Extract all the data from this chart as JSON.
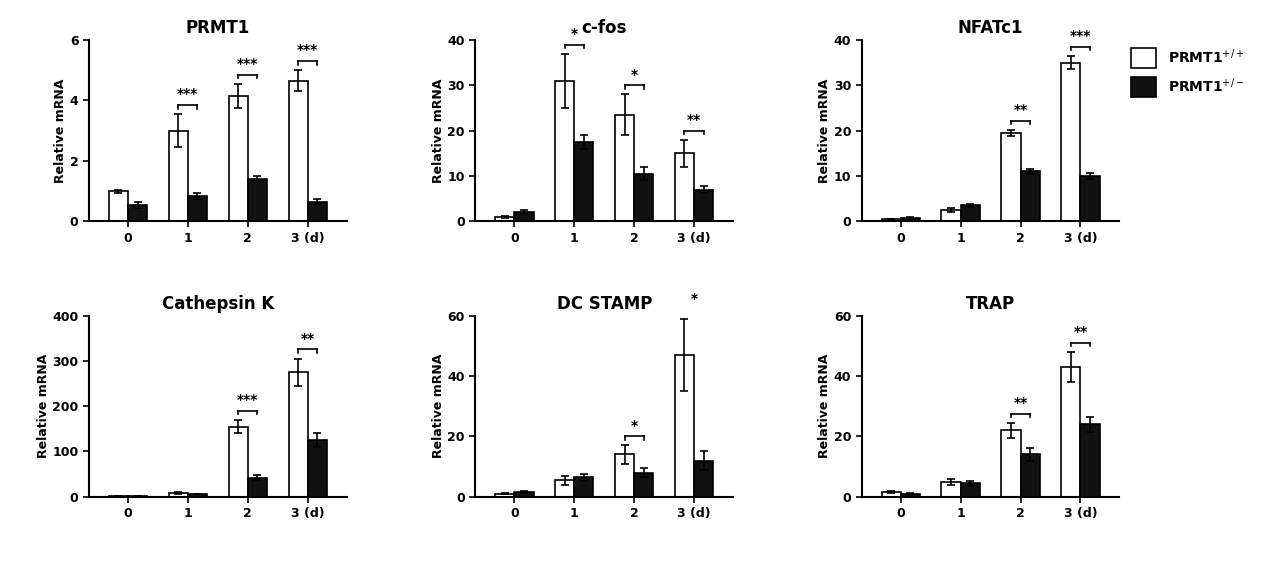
{
  "panels": [
    {
      "title": "PRMT1",
      "ylabel": "Relative mRNA",
      "ylim": [
        0,
        6
      ],
      "yticks": [
        0,
        2,
        4,
        6
      ],
      "days": [
        0,
        1,
        2,
        3
      ],
      "wt_vals": [
        1.0,
        3.0,
        4.15,
        4.65
      ],
      "wt_err": [
        0.05,
        0.55,
        0.4,
        0.35
      ],
      "ko_vals": [
        0.55,
        0.85,
        1.4,
        0.65
      ],
      "ko_err": [
        0.1,
        0.1,
        0.1,
        0.08
      ],
      "sig": [
        {
          "day_idx": 1,
          "label": "***"
        },
        {
          "day_idx": 2,
          "label": "***"
        },
        {
          "day_idx": 3,
          "label": "***"
        }
      ]
    },
    {
      "title": "c-fos",
      "ylabel": "Relative mRNA",
      "ylim": [
        0,
        40
      ],
      "yticks": [
        0,
        10,
        20,
        30,
        40
      ],
      "days": [
        0,
        1,
        2,
        3
      ],
      "wt_vals": [
        1.0,
        31.0,
        23.5,
        15.0
      ],
      "wt_err": [
        0.2,
        6.0,
        4.5,
        3.0
      ],
      "ko_vals": [
        2.0,
        17.5,
        10.5,
        7.0
      ],
      "ko_err": [
        0.5,
        1.5,
        1.5,
        0.8
      ],
      "sig": [
        {
          "day_idx": 1,
          "label": "*"
        },
        {
          "day_idx": 2,
          "label": "*"
        },
        {
          "day_idx": 3,
          "label": "**"
        }
      ]
    },
    {
      "title": "NFATc1",
      "ylabel": "Relative mRNA",
      "ylim": [
        0,
        40
      ],
      "yticks": [
        0,
        10,
        20,
        30,
        40
      ],
      "days": [
        0,
        1,
        2,
        3
      ],
      "wt_vals": [
        0.5,
        2.5,
        19.5,
        35.0
      ],
      "wt_err": [
        0.1,
        0.4,
        0.7,
        1.5
      ],
      "ko_vals": [
        0.8,
        3.5,
        11.0,
        10.0
      ],
      "ko_err": [
        0.15,
        0.3,
        0.6,
        0.7
      ],
      "sig": [
        {
          "day_idx": 2,
          "label": "**"
        },
        {
          "day_idx": 3,
          "label": "***"
        }
      ],
      "legend": true
    },
    {
      "title": "Cathepsin K",
      "ylabel": "Relative mRNA",
      "ylim": [
        0,
        400
      ],
      "yticks": [
        0,
        100,
        200,
        300,
        400
      ],
      "days": [
        0,
        1,
        2,
        3
      ],
      "wt_vals": [
        2.0,
        8.0,
        155.0,
        275.0
      ],
      "wt_err": [
        0.5,
        1.5,
        15.0,
        30.0
      ],
      "ko_vals": [
        1.5,
        6.0,
        42.0,
        125.0
      ],
      "ko_err": [
        0.4,
        0.8,
        5.0,
        15.0
      ],
      "sig": [
        {
          "day_idx": 2,
          "label": "***"
        },
        {
          "day_idx": 3,
          "label": "**"
        }
      ]
    },
    {
      "title": "DC STAMP",
      "ylabel": "Relative mRNA",
      "ylim": [
        0,
        60
      ],
      "yticks": [
        0,
        20,
        40,
        60
      ],
      "days": [
        0,
        1,
        2,
        3
      ],
      "wt_vals": [
        1.0,
        5.5,
        14.0,
        47.0
      ],
      "wt_err": [
        0.2,
        1.5,
        3.0,
        12.0
      ],
      "ko_vals": [
        1.5,
        6.5,
        8.0,
        12.0
      ],
      "ko_err": [
        0.3,
        1.2,
        1.5,
        3.0
      ],
      "sig": [
        {
          "day_idx": 2,
          "label": "*"
        },
        {
          "day_idx": 3,
          "label": "*"
        }
      ]
    },
    {
      "title": "TRAP",
      "ylabel": "Relative mRNA",
      "ylim": [
        0,
        60
      ],
      "yticks": [
        0,
        20,
        40,
        60
      ],
      "days": [
        0,
        1,
        2,
        3
      ],
      "wt_vals": [
        1.5,
        5.0,
        22.0,
        43.0
      ],
      "wt_err": [
        0.3,
        1.0,
        2.5,
        5.0
      ],
      "ko_vals": [
        1.0,
        4.5,
        14.0,
        24.0
      ],
      "ko_err": [
        0.2,
        0.8,
        2.0,
        2.5
      ],
      "sig": [
        {
          "day_idx": 2,
          "label": "**"
        },
        {
          "day_idx": 3,
          "label": "**"
        }
      ]
    }
  ],
  "wt_color": "#ffffff",
  "ko_color": "#111111",
  "bar_edge": "#000000",
  "bar_width": 0.32,
  "legend_labels": [
    "PRMT1$^{+/+}$",
    "PRMT1$^{+/-}$"
  ],
  "sig_fontsize": 10,
  "title_fontsize": 12,
  "label_fontsize": 9,
  "tick_fontsize": 9
}
